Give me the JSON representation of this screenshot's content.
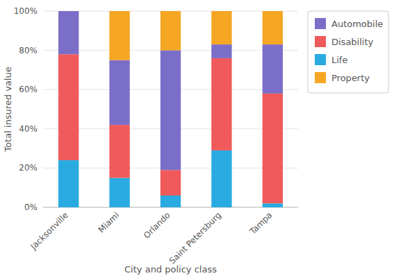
{
  "chart_data": {
    "type": "bar",
    "stacked": true,
    "categories": [
      "Jacksonville",
      "Miami",
      "Orlando",
      "Saint Petersburg",
      "Tampa"
    ],
    "series": [
      {
        "name": "Life",
        "color": "#29abe2",
        "values": [
          24,
          15,
          6,
          29,
          2
        ]
      },
      {
        "name": "Disability",
        "color": "#f05a5a",
        "values": [
          54,
          27,
          13,
          47,
          56
        ]
      },
      {
        "name": "Automobile",
        "color": "#7b6ec8",
        "values": [
          22,
          33,
          61,
          7,
          25
        ]
      },
      {
        "name": "Property",
        "color": "#f5a623",
        "values": [
          0,
          25,
          20,
          17,
          17
        ]
      }
    ],
    "xlabel": "City and policy class",
    "ylabel": "Total insured value",
    "ylim": [
      0,
      100
    ],
    "yticks": [
      {
        "value": 0,
        "label": "0%"
      },
      {
        "value": 20,
        "label": "20%"
      },
      {
        "value": 40,
        "label": "40%"
      },
      {
        "value": 60,
        "label": "60%"
      },
      {
        "value": 80,
        "label": "80%"
      },
      {
        "value": 100,
        "label": "100%"
      }
    ],
    "grid": true,
    "legend": "right"
  }
}
